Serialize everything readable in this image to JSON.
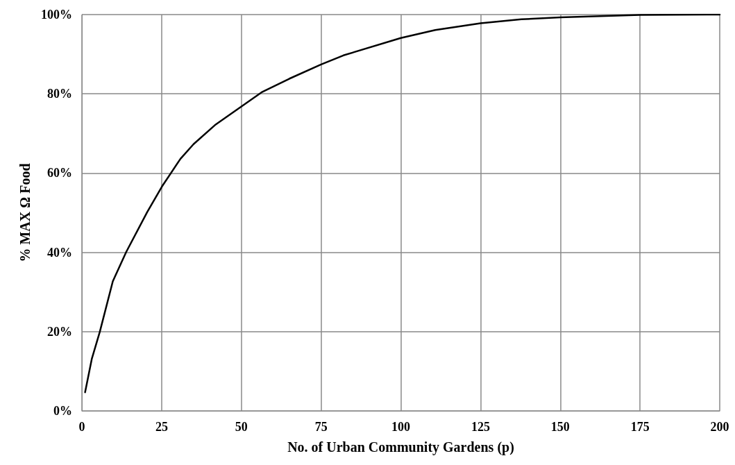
{
  "chart_data": {
    "type": "line",
    "xlabel": "No. of Urban Community Gardens (p)",
    "ylabel": "% MAX Ω Food",
    "series": [
      {
        "color": "#000000",
        "x": [
          1,
          3.1,
          5.6,
          9.7,
          13.9,
          20.5,
          25.1,
          30.9,
          35,
          41.7,
          50,
          56.6,
          65,
          75,
          82,
          100,
          110.8,
          125,
          137.8,
          150,
          175,
          200
        ],
        "values": [
          4.7,
          13.1,
          19.9,
          32.7,
          40.1,
          50.2,
          56.6,
          63.6,
          67.3,
          72.1,
          76.8,
          80.5,
          83.8,
          87.4,
          89.7,
          94.1,
          96.1,
          97.8,
          98.8,
          99.3,
          99.9,
          100
        ]
      }
    ],
    "xlim": [
      0,
      200
    ],
    "xticks": [
      0,
      25,
      50,
      75,
      100,
      125,
      150,
      175,
      200
    ],
    "ylim": [
      0,
      100
    ],
    "yticks": [
      {
        "value": 0,
        "label": "0%"
      },
      {
        "value": 20,
        "label": "20%"
      },
      {
        "value": 40,
        "label": "40%"
      },
      {
        "value": 60,
        "label": "60%"
      },
      {
        "value": 80,
        "label": "80%"
      },
      {
        "value": 100,
        "label": "100%"
      }
    ],
    "grid": true,
    "marker": "none",
    "line_style": "solid"
  }
}
